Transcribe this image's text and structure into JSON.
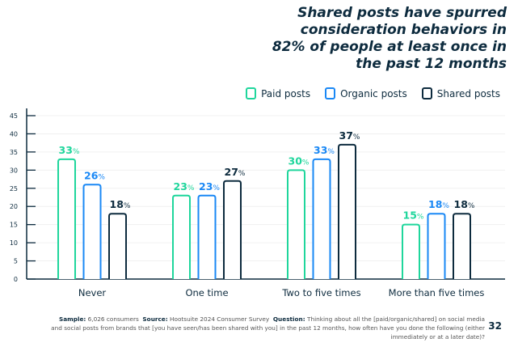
{
  "title": "Shared posts have spurred consideration behaviors in 82% of people at least once in the past 12 months",
  "footer": {
    "sample_label": "Sample:",
    "sample": "6,026 consumers",
    "source_label": "Source:",
    "source": "Hootsuite 2024 Consumer Survey",
    "question_label": "Question:",
    "question": "Thinking about all the [paid/organic/shared] on social media and social posts from brands that [you have seen/has been shared with you] in the past 12 months, how often have you done the following (either immediately or at a later date)?",
    "page_number": "32"
  },
  "chart_data": {
    "type": "bar",
    "categories": [
      "Never",
      "One time",
      "Two to five times",
      "More than five times"
    ],
    "series": [
      {
        "name": "Paid posts",
        "color": "#1fd69c",
        "values": [
          33,
          23,
          30,
          15
        ]
      },
      {
        "name": "Organic posts",
        "color": "#1a88f5",
        "values": [
          26,
          23,
          33,
          18
        ]
      },
      {
        "name": "Shared posts",
        "color": "#0d2b3e",
        "values": [
          18,
          27,
          37,
          18
        ]
      }
    ],
    "ylim": [
      0,
      45
    ],
    "yticks": [
      0,
      5,
      10,
      15,
      20,
      25,
      30,
      35,
      40,
      45
    ],
    "value_suffix": "%",
    "grid": true,
    "legend_position": "top-right"
  }
}
